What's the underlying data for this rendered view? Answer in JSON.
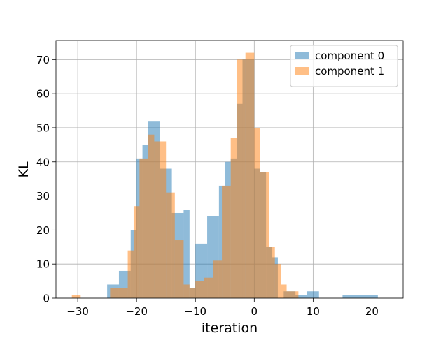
{
  "chart_data": {
    "type": "bar",
    "subtype": "overlapping-histogram",
    "title": "",
    "xlabel": "iteration",
    "ylabel": "KL",
    "xlim": [
      -33.7,
      25.3
    ],
    "ylim": [
      0,
      75.6
    ],
    "xticks": [
      -30,
      -20,
      -10,
      0,
      10,
      20
    ],
    "yticks": [
      0,
      10,
      20,
      30,
      40,
      50,
      60,
      70
    ],
    "xtick_labels": [
      "−30",
      "−20",
      "−10",
      "0",
      "10",
      "20"
    ],
    "ytick_labels": [
      "0",
      "10",
      "20",
      "30",
      "40",
      "50",
      "60",
      "70"
    ],
    "grid": true,
    "legend_position": "top-right",
    "series": [
      {
        "name": "component 0",
        "color": "#1f77b4",
        "alpha": 0.5,
        "bin_edges": [
          -25.0,
          -23.0,
          -21.0,
          -20.0,
          -19.0,
          -18.0,
          -16.0,
          -14.0,
          -12.0,
          -11.0,
          -10.0,
          -8.0,
          -6.0,
          -5.0,
          -4.0,
          -3.0,
          -2.0,
          0.0,
          1.0,
          2.0,
          3.0,
          4.0,
          5.0,
          7.0,
          9.0,
          11.0,
          15.0,
          21.0,
          23.0
        ],
        "counts": [
          4,
          8,
          20,
          41,
          45,
          52,
          38,
          25,
          26,
          3,
          16,
          24,
          33,
          40,
          41,
          57,
          70,
          38,
          37,
          15,
          12,
          0,
          2,
          1,
          2,
          0,
          1,
          0
        ]
      },
      {
        "name": "component 1",
        "color": "#ff7f0e",
        "alpha": 0.5,
        "bin_edges": [
          -31.0,
          -29.5,
          -24.5,
          -21.5,
          -20.5,
          -19.5,
          -18.0,
          -17.0,
          -15.0,
          -13.5,
          -12.0,
          -11.0,
          -10.0,
          -8.5,
          -7.0,
          -5.5,
          -4.0,
          -3.0,
          -1.5,
          0.0,
          1.0,
          2.5,
          3.5,
          4.5,
          5.5,
          7.5,
          9.0
        ],
        "counts": [
          1,
          0,
          3,
          14,
          27,
          41,
          48,
          46,
          31,
          17,
          4,
          3,
          5,
          6,
          11,
          33,
          47,
          70,
          72,
          50,
          37,
          15,
          10,
          4,
          2,
          0
        ]
      }
    ]
  }
}
